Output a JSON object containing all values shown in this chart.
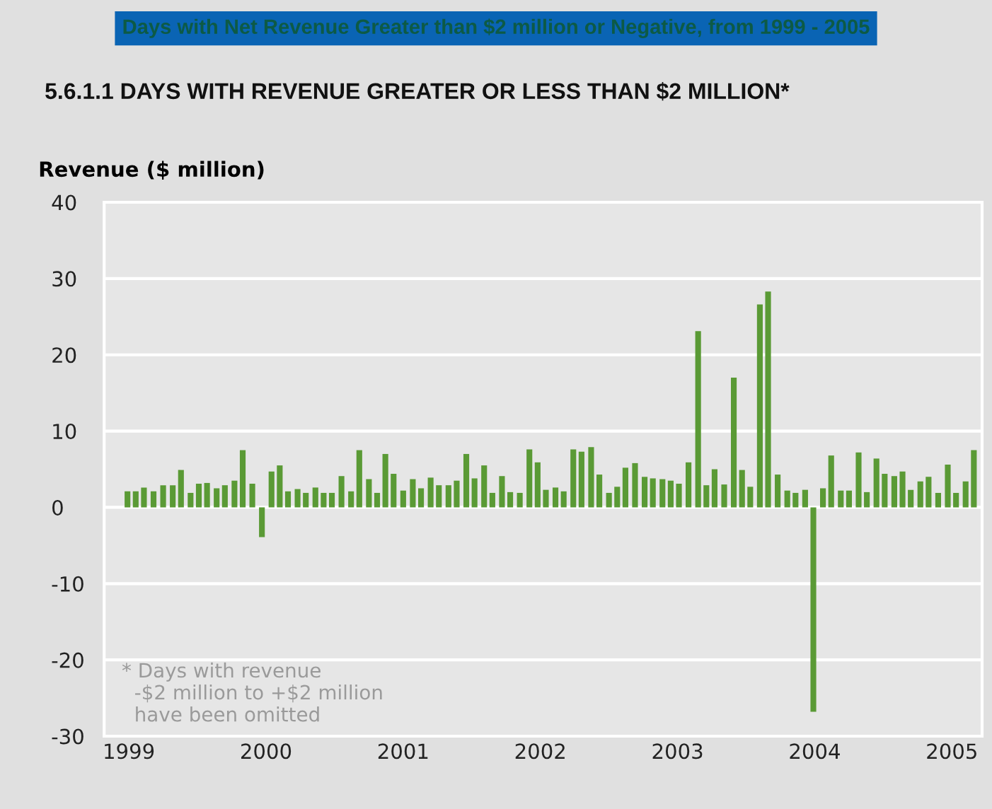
{
  "chart_data": {
    "type": "bar",
    "title": "Days with Net Revenue Greater than $2 million or Negative, from 1999 - 2005",
    "subtitle": "5.6.1.1 DAYS WITH REVENUE GREATER OR LESS THAN $2 MILLION*",
    "ylabel": "Revenue ($ million)",
    "annotations": [
      "* Days with revenue\n  -$2 million to +$2 million\n  have been omitted"
    ],
    "x": [
      1998.99,
      1999.05,
      1999.11,
      1999.18,
      1999.25,
      1999.32,
      1999.38,
      1999.45,
      1999.51,
      1999.57,
      1999.64,
      1999.7,
      1999.77,
      1999.83,
      1999.9,
      1999.97,
      2000.04,
      2000.1,
      2000.16,
      2000.23,
      2000.29,
      2000.36,
      2000.42,
      2000.48,
      2000.55,
      2000.62,
      2000.68,
      2000.75,
      2000.81,
      2000.87,
      2000.93,
      2001.0,
      2001.07,
      2001.13,
      2001.2,
      2001.26,
      2001.33,
      2001.39,
      2001.46,
      2001.52,
      2001.59,
      2001.65,
      2001.72,
      2001.78,
      2001.85,
      2001.92,
      2001.98,
      2002.04,
      2002.11,
      2002.17,
      2002.24,
      2002.3,
      2002.37,
      2002.43,
      2002.5,
      2002.56,
      2002.62,
      2002.69,
      2002.76,
      2002.82,
      2002.89,
      2002.95,
      2003.01,
      2003.08,
      2003.15,
      2003.21,
      2003.27,
      2003.34,
      2003.41,
      2003.47,
      2003.53,
      2003.6,
      2003.66,
      2003.73,
      2003.8,
      2003.86,
      2003.93,
      2003.99,
      2004.06,
      2004.12,
      2004.19,
      2004.25,
      2004.32,
      2004.38,
      2004.45,
      2004.51,
      2004.58,
      2004.64,
      2004.7,
      2004.77,
      2004.83,
      2004.9,
      2004.97,
      2005.03,
      2005.1,
      2005.16
    ],
    "values": [
      2.1,
      2.1,
      2.6,
      2.1,
      2.9,
      2.9,
      4.9,
      1.9,
      3.1,
      3.2,
      2.5,
      2.9,
      3.5,
      7.5,
      3.1,
      -3.9,
      4.7,
      5.5,
      2.1,
      2.4,
      1.9,
      2.6,
      1.9,
      1.9,
      4.1,
      2.1,
      7.5,
      3.7,
      1.9,
      7.0,
      4.4,
      2.2,
      3.7,
      2.5,
      3.9,
      2.9,
      2.9,
      3.5,
      7.0,
      3.8,
      5.5,
      1.9,
      4.1,
      2.0,
      1.9,
      7.6,
      5.9,
      2.3,
      2.6,
      2.1,
      7.6,
      7.3,
      7.9,
      4.3,
      1.9,
      2.7,
      5.2,
      5.8,
      4.0,
      3.8,
      3.7,
      3.5,
      3.1,
      5.9,
      23.1,
      2.9,
      5.0,
      3.0,
      17.0,
      4.9,
      2.7,
      26.6,
      28.3,
      4.3,
      2.2,
      1.9,
      2.3,
      -26.8,
      2.5,
      6.8,
      2.2,
      2.2,
      7.2,
      2.0,
      6.4,
      4.4,
      4.1,
      4.7,
      2.3,
      3.4,
      4.0,
      1.9,
      5.6,
      1.9,
      3.4,
      7.5
    ],
    "color": "#5a9a35",
    "xlim": [
      1998.82,
      2005.22
    ],
    "xticks": [
      1999,
      2000,
      2001,
      2002,
      2003,
      2004,
      2005
    ],
    "ylim": [
      -30,
      40
    ],
    "yticks": [
      -30,
      -20,
      -10,
      0,
      10,
      20,
      30,
      40
    ],
    "grid": "y"
  }
}
